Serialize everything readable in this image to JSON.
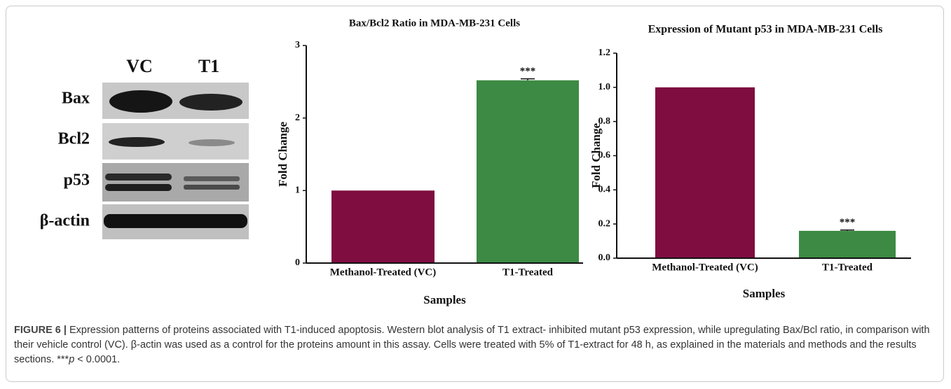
{
  "chart_data": [
    {
      "type": "bar",
      "title": "Bax/Bcl2 Ratio in MDA-MB-231 Cells",
      "ylabel": "Fold Change",
      "xlabel": "Samples",
      "categories": [
        "Methanol-Treated (VC)",
        "T1-Treated"
      ],
      "values": [
        1,
        2.52
      ],
      "errors": [
        null,
        0.02
      ],
      "significance": [
        null,
        "***"
      ],
      "colors": [
        "#800d40",
        "#3c8a43"
      ],
      "ylim": [
        0,
        3
      ],
      "yticks": [
        0,
        1,
        2,
        3
      ]
    },
    {
      "type": "bar",
      "title": "Expression of Mutant p53 in MDA-MB-231 Cells",
      "ylabel": "Fold Change",
      "xlabel": "Samples",
      "categories": [
        "Methanol-Treated (VC)",
        "T1-Treated"
      ],
      "values": [
        1.0,
        0.16
      ],
      "errors": [
        null,
        0.005
      ],
      "significance": [
        null,
        "***"
      ],
      "colors": [
        "#800d40",
        "#3c8a43"
      ],
      "ylim": [
        0,
        1.2
      ],
      "yticks": [
        {
          "value": 0,
          "label": "0.0"
        },
        0.2,
        0.4,
        0.6,
        0.8,
        {
          "value": 1,
          "label": "1.0"
        },
        1.2
      ]
    }
  ],
  "blot": {
    "columns": [
      "VC",
      "T1"
    ],
    "rows": [
      "Bax",
      "Bcl2",
      "p53",
      "β-actin"
    ]
  },
  "caption": {
    "label": "FIGURE 6 |",
    "text": " Expression patterns of proteins associated with T1-induced apoptosis. Western blot analysis of T1 extract- inhibited mutant p53 expression, while upregulating Bax/Bcl ratio, in comparison with their vehicle control (VC). β-actin was used as a control for the proteins amount in this assay. Cells were treated with 5% of T1-extract for 48 h, as explained in the materials and methods and the results sections. ",
    "stars": "***",
    "p": "p",
    "tail": " < 0.0001."
  }
}
